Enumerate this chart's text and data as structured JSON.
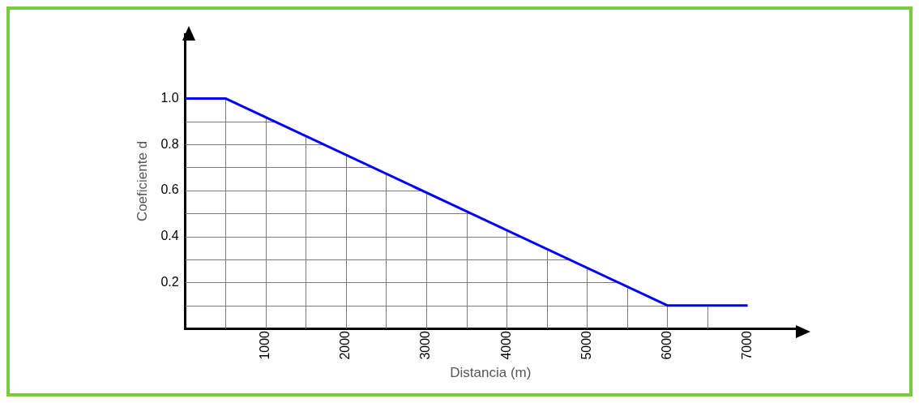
{
  "chart_data": {
    "type": "line",
    "xlabel": "Distancia (m)",
    "ylabel": "Coeficiente d",
    "x": [
      0,
      500,
      6000,
      7000
    ],
    "series": [
      {
        "color": "#0000ff",
        "values": [
          1.0,
          1.0,
          0.1,
          0.1
        ]
      }
    ],
    "xlim": [
      0,
      7600
    ],
    "ylim": [
      0,
      1.28
    ],
    "xticks": [
      {
        "value": 500,
        "label": null
      },
      1000,
      {
        "value": 1500,
        "label": null
      },
      2000,
      {
        "value": 2500,
        "label": null
      },
      3000,
      {
        "value": 3500,
        "label": null
      },
      4000,
      {
        "value": 4500,
        "label": null
      },
      5000,
      {
        "value": 5500,
        "label": null
      },
      6000,
      {
        "value": 6500,
        "label": null
      },
      7000
    ],
    "yticks": [
      {
        "value": 0.1,
        "label": null
      },
      0.2,
      {
        "value": 0.3,
        "label": null
      },
      0.4,
      {
        "value": 0.5,
        "label": null
      },
      0.6,
      {
        "value": 0.7,
        "label": null
      },
      0.8,
      {
        "value": 0.9,
        "label": null
      },
      {
        "value": 1.0,
        "label": "1.0"
      }
    ],
    "grid": true,
    "marker": "none",
    "line_style": "solid",
    "legend": false
  }
}
